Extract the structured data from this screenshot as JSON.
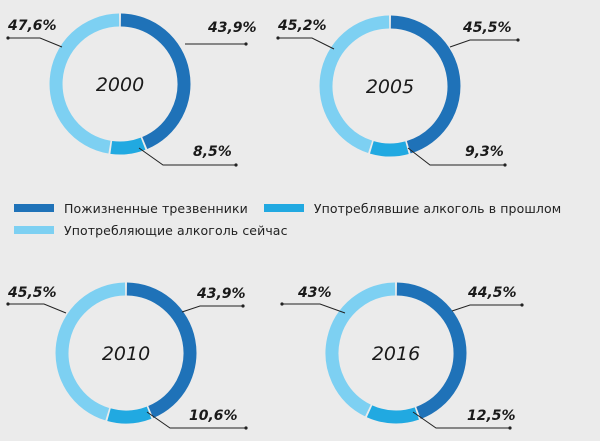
{
  "colors": {
    "background": "#ebebeb",
    "lifetime_abstainers": "#1f72b8",
    "former_drinkers": "#21a9e1",
    "current_drinkers": "#7dd0f2",
    "leader": "#222222"
  },
  "legend": {
    "lifetime_abstainers": "Пожизненные трезвенники",
    "former_drinkers": "Употреблявшие алкоголь в прошлом",
    "current_drinkers": "Употребляющие алкоголь сейчас"
  },
  "chart_data": [
    {
      "type": "pie",
      "variant": "donut",
      "title": "2000",
      "slices": [
        {
          "key": "lifetime_abstainers",
          "value": 43.9,
          "label": "43,9%"
        },
        {
          "key": "former_drinkers",
          "value": 8.5,
          "label": "8,5%"
        },
        {
          "key": "current_drinkers",
          "value": 47.6,
          "label": "47,6%"
        }
      ]
    },
    {
      "type": "pie",
      "variant": "donut",
      "title": "2005",
      "slices": [
        {
          "key": "lifetime_abstainers",
          "value": 45.5,
          "label": "45,5%"
        },
        {
          "key": "former_drinkers",
          "value": 9.3,
          "label": "9,3%"
        },
        {
          "key": "current_drinkers",
          "value": 45.2,
          "label": "45,2%"
        }
      ]
    },
    {
      "type": "pie",
      "variant": "donut",
      "title": "2010",
      "slices": [
        {
          "key": "lifetime_abstainers",
          "value": 43.9,
          "label": "43,9%"
        },
        {
          "key": "former_drinkers",
          "value": 10.6,
          "label": "10,6%"
        },
        {
          "key": "current_drinkers",
          "value": 45.5,
          "label": "45,5%"
        }
      ]
    },
    {
      "type": "pie",
      "variant": "donut",
      "title": "2016",
      "slices": [
        {
          "key": "lifetime_abstainers",
          "value": 44.5,
          "label": "44,5%"
        },
        {
          "key": "former_drinkers",
          "value": 12.5,
          "label": "12,5%"
        },
        {
          "key": "current_drinkers",
          "value": 43,
          "label": "43%"
        }
      ]
    }
  ]
}
